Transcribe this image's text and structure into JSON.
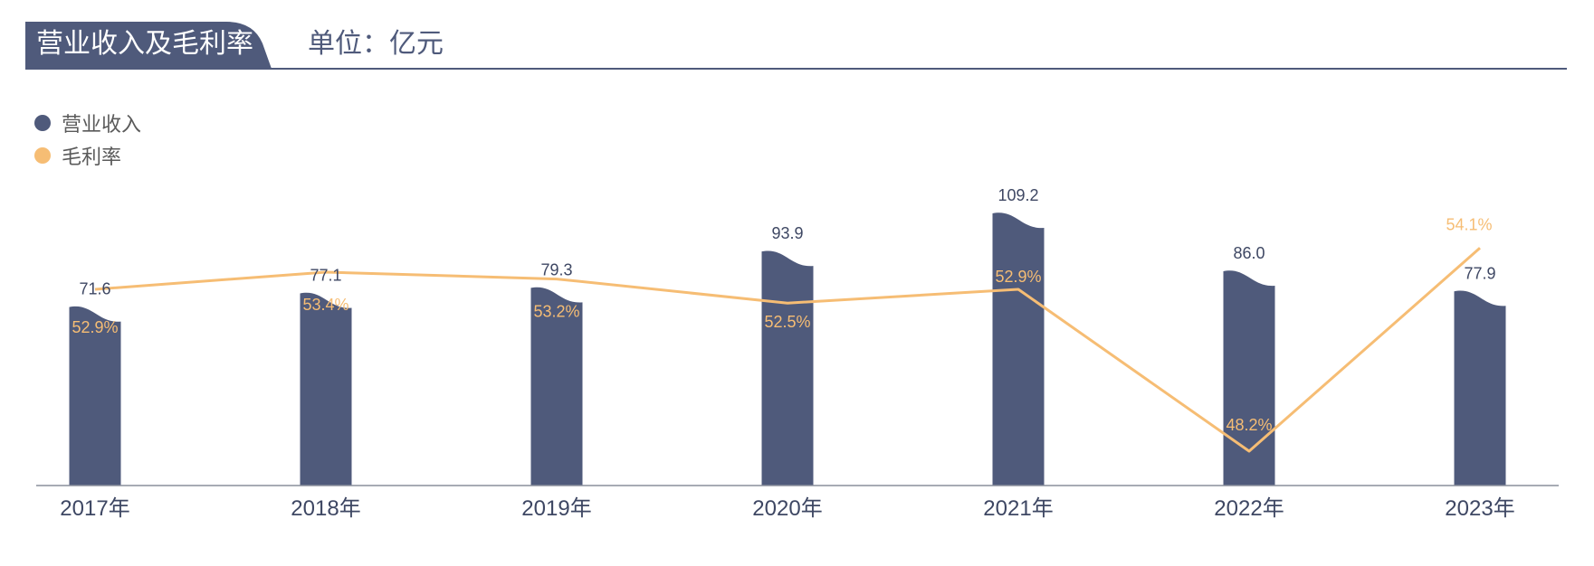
{
  "header": {
    "title": "营业收入及毛利率",
    "unit": "单位：亿元"
  },
  "colors": {
    "bar": "#4f5a7b",
    "line": "#f6bd74",
    "axis": "#8a8f9c",
    "bar_label": "#3e4763",
    "title_bg": "#4f5a7b"
  },
  "legend": [
    {
      "label": "营业收入",
      "color": "#4f5a7b"
    },
    {
      "label": "毛利率",
      "color": "#f6bd74"
    }
  ],
  "chart_data": {
    "type": "bar",
    "categories": [
      "2017年",
      "2018年",
      "2019年",
      "2020年",
      "2021年",
      "2022年",
      "2023年"
    ],
    "series": [
      {
        "name": "营业收入",
        "type": "bar",
        "values": [
          71.6,
          77.1,
          79.3,
          93.9,
          109.2,
          86.0,
          77.9
        ],
        "labels": [
          "71.6",
          "77.1",
          "79.3",
          "93.9",
          "109.2",
          "86.0",
          "77.9"
        ]
      },
      {
        "name": "毛利率",
        "type": "line",
        "values": [
          52.9,
          53.4,
          53.2,
          52.5,
          52.9,
          48.2,
          54.1
        ],
        "labels": [
          "52.9%",
          "53.4%",
          "53.2%",
          "52.5%",
          "52.9%",
          "48.2%",
          "54.1%"
        ]
      }
    ],
    "title": "营业收入及毛利率",
    "unit": "单位：亿元",
    "legend_position": "top-left",
    "grid": false
  }
}
